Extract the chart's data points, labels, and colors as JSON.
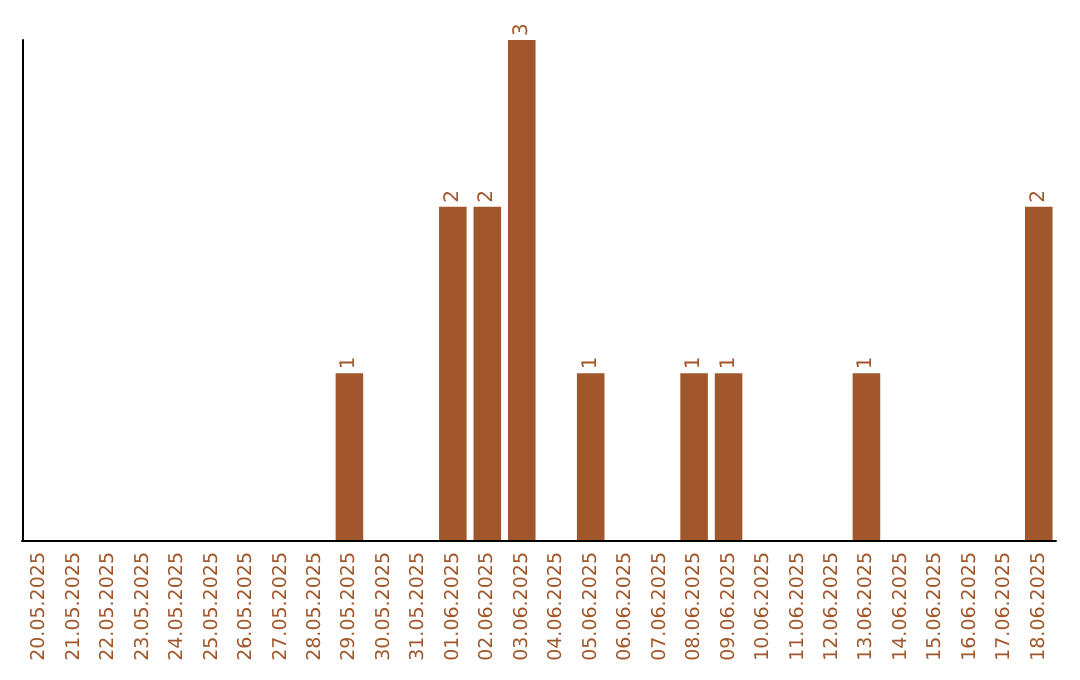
{
  "chart_data": {
    "type": "bar",
    "categories": [
      "20.05.2025",
      "21.05.2025",
      "22.05.2025",
      "23.05.2025",
      "24.05.2025",
      "25.05.2025",
      "26.05.2025",
      "27.05.2025",
      "28.05.2025",
      "29.05.2025",
      "30.05.2025",
      "31.05.2025",
      "01.06.2025",
      "02.06.2025",
      "03.06.2025",
      "04.06.2025",
      "05.06.2025",
      "06.06.2025",
      "07.06.2025",
      "08.06.2025",
      "09.06.2025",
      "10.06.2025",
      "11.06.2025",
      "12.06.2025",
      "13.06.2025",
      "14.06.2025",
      "15.06.2025",
      "16.06.2025",
      "17.06.2025",
      "18.06.2025"
    ],
    "values": [
      0,
      0,
      0,
      0,
      0,
      0,
      0,
      0,
      0,
      1,
      0,
      0,
      2,
      2,
      3,
      0,
      1,
      0,
      0,
      1,
      1,
      0,
      0,
      0,
      1,
      0,
      0,
      0,
      0,
      2
    ],
    "value_labels": [
      null,
      null,
      null,
      null,
      null,
      null,
      null,
      null,
      null,
      "1",
      null,
      null,
      "2",
      "2",
      "3",
      null,
      "1",
      null,
      null,
      "1",
      "1",
      null,
      null,
      null,
      "1",
      null,
      null,
      null,
      null,
      "2"
    ],
    "color": "#a0572b",
    "ylim": [
      0,
      3
    ],
    "tick_labels": "x",
    "grid": false
  }
}
